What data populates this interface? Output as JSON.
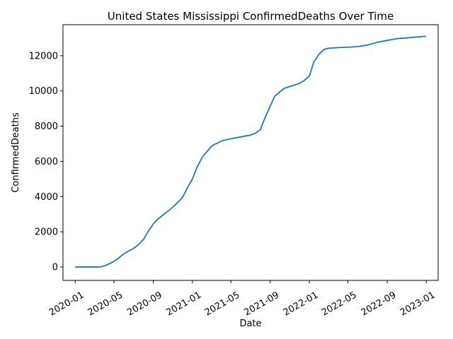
{
  "chart_data": {
    "type": "line",
    "title": "United States Mississippi ConfirmedDeaths Over Time",
    "xlabel": "Date",
    "ylabel": "ConfirmedDeaths",
    "xlim": [
      "2019-11-24",
      "2023-02-07"
    ],
    "ylim": [
      -760,
      13760
    ],
    "grid": false,
    "x_ticks": [
      {
        "date": "2020-01-01",
        "label": "2020-01"
      },
      {
        "date": "2020-05-01",
        "label": "2020-05"
      },
      {
        "date": "2020-09-01",
        "label": "2020-09"
      },
      {
        "date": "2021-01-01",
        "label": "2021-01"
      },
      {
        "date": "2021-05-01",
        "label": "2021-05"
      },
      {
        "date": "2021-09-01",
        "label": "2021-09"
      },
      {
        "date": "2022-01-01",
        "label": "2022-01"
      },
      {
        "date": "2022-05-01",
        "label": "2022-05"
      },
      {
        "date": "2022-09-01",
        "label": "2022-09"
      },
      {
        "date": "2023-01-01",
        "label": "2023-01"
      }
    ],
    "y_ticks": [
      {
        "value": 0,
        "label": "0"
      },
      {
        "value": 2000,
        "label": "2000"
      },
      {
        "value": 4000,
        "label": "4000"
      },
      {
        "value": 6000,
        "label": "6000"
      },
      {
        "value": 8000,
        "label": "8000"
      },
      {
        "value": 10000,
        "label": "10000"
      },
      {
        "value": 12000,
        "label": "12000"
      }
    ],
    "series": [
      {
        "color": "#1f77b4",
        "points": [
          [
            "2020-01-01",
            0
          ],
          [
            "2020-03-01",
            0
          ],
          [
            "2020-03-20",
            5
          ],
          [
            "2020-04-01",
            60
          ],
          [
            "2020-04-15",
            170
          ],
          [
            "2020-05-01",
            320
          ],
          [
            "2020-05-15",
            500
          ],
          [
            "2020-06-01",
            750
          ],
          [
            "2020-06-15",
            900
          ],
          [
            "2020-07-01",
            1050
          ],
          [
            "2020-07-15",
            1250
          ],
          [
            "2020-08-01",
            1550
          ],
          [
            "2020-08-15",
            2000
          ],
          [
            "2020-09-01",
            2450
          ],
          [
            "2020-09-15",
            2720
          ],
          [
            "2020-10-01",
            2950
          ],
          [
            "2020-10-15",
            3150
          ],
          [
            "2020-11-01",
            3400
          ],
          [
            "2020-11-15",
            3650
          ],
          [
            "2020-12-01",
            3950
          ],
          [
            "2020-12-15",
            4450
          ],
          [
            "2021-01-01",
            5000
          ],
          [
            "2021-01-15",
            5650
          ],
          [
            "2021-02-01",
            6250
          ],
          [
            "2021-02-15",
            6550
          ],
          [
            "2021-03-01",
            6850
          ],
          [
            "2021-03-15",
            7000
          ],
          [
            "2021-04-01",
            7150
          ],
          [
            "2021-04-15",
            7220
          ],
          [
            "2021-05-01",
            7280
          ],
          [
            "2021-05-15",
            7330
          ],
          [
            "2021-06-01",
            7390
          ],
          [
            "2021-06-15",
            7440
          ],
          [
            "2021-07-01",
            7490
          ],
          [
            "2021-07-15",
            7580
          ],
          [
            "2021-08-01",
            7800
          ],
          [
            "2021-08-15",
            8450
          ],
          [
            "2021-09-01",
            9150
          ],
          [
            "2021-09-15",
            9700
          ],
          [
            "2021-10-01",
            9950
          ],
          [
            "2021-10-15",
            10150
          ],
          [
            "2021-11-01",
            10250
          ],
          [
            "2021-11-15",
            10330
          ],
          [
            "2021-12-01",
            10420
          ],
          [
            "2021-12-15",
            10580
          ],
          [
            "2022-01-01",
            10850
          ],
          [
            "2022-01-15",
            11650
          ],
          [
            "2022-02-01",
            12100
          ],
          [
            "2022-02-15",
            12350
          ],
          [
            "2022-03-01",
            12420
          ],
          [
            "2022-04-01",
            12460
          ],
          [
            "2022-05-01",
            12480
          ],
          [
            "2022-06-01",
            12520
          ],
          [
            "2022-07-01",
            12600
          ],
          [
            "2022-08-01",
            12760
          ],
          [
            "2022-09-01",
            12870
          ],
          [
            "2022-10-01",
            12970
          ],
          [
            "2022-11-01",
            13010
          ],
          [
            "2022-12-01",
            13060
          ],
          [
            "2022-12-31",
            13110
          ]
        ]
      }
    ]
  }
}
